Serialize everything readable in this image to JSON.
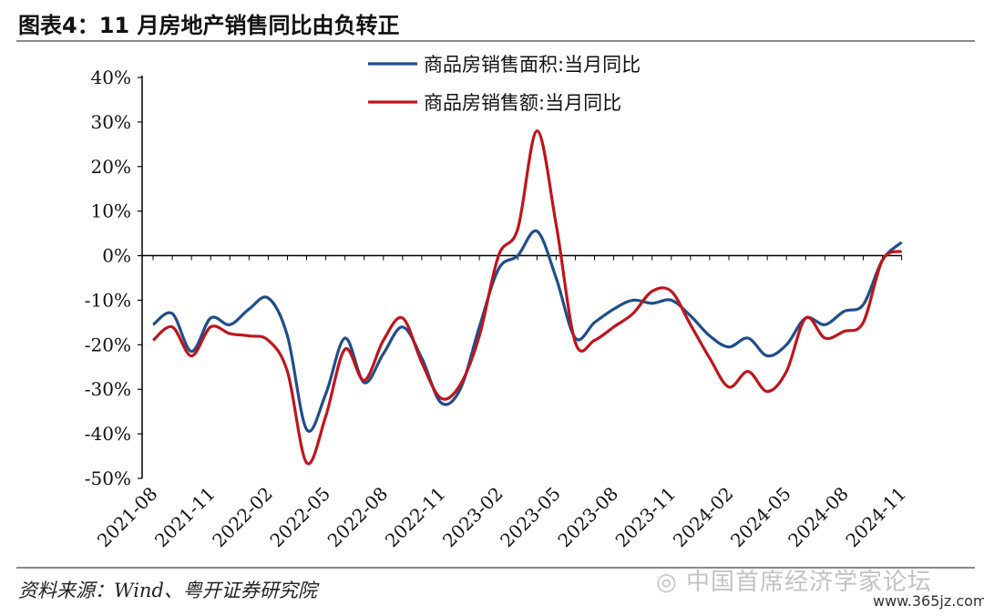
{
  "figure": {
    "title": "图表4：11 月房地产销售同比由负转正",
    "source": "资料来源：Wind、粤开证券研究院",
    "watermark": "◎ 中国首席经济学家论坛",
    "watermark_url": "www.365jz.com"
  },
  "chart_data": {
    "type": "line",
    "title": "",
    "xlabel": "",
    "ylabel": "",
    "ylim": [
      -0.5,
      0.4
    ],
    "yticks": [
      -0.5,
      -0.4,
      -0.3,
      -0.2,
      -0.1,
      0,
      0.1,
      0.2,
      0.3,
      0.4
    ],
    "ytick_labels": [
      "-50%",
      "-40%",
      "-30%",
      "-20%",
      "-10%",
      "0%",
      "10%",
      "20%",
      "30%",
      "40%"
    ],
    "x": [
      "2021-08",
      "2021-09",
      "2021-10",
      "2021-11",
      "2021-12",
      "2022-01",
      "2022-02",
      "2022-03",
      "2022-04",
      "2022-05",
      "2022-06",
      "2022-07",
      "2022-08",
      "2022-09",
      "2022-10",
      "2022-11",
      "2022-12",
      "2023-01",
      "2023-02",
      "2023-03",
      "2023-04",
      "2023-05",
      "2023-06",
      "2023-07",
      "2023-08",
      "2023-09",
      "2023-10",
      "2023-11",
      "2023-12",
      "2024-01",
      "2024-02",
      "2024-03",
      "2024-04",
      "2024-05",
      "2024-06",
      "2024-07",
      "2024-08",
      "2024-09",
      "2024-10",
      "2024-11"
    ],
    "xtick_labels": [
      "2021-08",
      "2021-11",
      "2022-02",
      "2022-05",
      "2022-08",
      "2022-11",
      "2023-02",
      "2023-05",
      "2023-08",
      "2023-11",
      "2024-02",
      "2024-05",
      "2024-08",
      "2024-11"
    ],
    "legend_position": "top-center",
    "grid": false,
    "series": [
      {
        "name": "商品房销售面积:当月同比",
        "color": "#1f4e8c",
        "values": [
          -0.155,
          -0.13,
          -0.215,
          -0.14,
          -0.155,
          -0.12,
          -0.095,
          -0.18,
          -0.39,
          -0.31,
          -0.185,
          -0.285,
          -0.22,
          -0.16,
          -0.23,
          -0.33,
          -0.3,
          -0.16,
          -0.03,
          0.0,
          0.055,
          -0.05,
          -0.185,
          -0.15,
          -0.12,
          -0.1,
          -0.107,
          -0.1,
          -0.135,
          -0.18,
          -0.205,
          -0.185,
          -0.225,
          -0.2,
          -0.14,
          -0.155,
          -0.125,
          -0.11,
          -0.01,
          0.03
        ]
      },
      {
        "name": "商品房销售额:当月同比",
        "color": "#c0141c",
        "values": [
          -0.19,
          -0.16,
          -0.225,
          -0.16,
          -0.175,
          -0.18,
          -0.19,
          -0.26,
          -0.465,
          -0.36,
          -0.21,
          -0.28,
          -0.19,
          -0.14,
          -0.24,
          -0.32,
          -0.29,
          -0.18,
          0.0,
          0.06,
          0.28,
          0.07,
          -0.195,
          -0.19,
          -0.16,
          -0.13,
          -0.08,
          -0.08,
          -0.155,
          -0.23,
          -0.295,
          -0.26,
          -0.305,
          -0.26,
          -0.14,
          -0.185,
          -0.17,
          -0.15,
          -0.01,
          0.01
        ]
      }
    ]
  }
}
